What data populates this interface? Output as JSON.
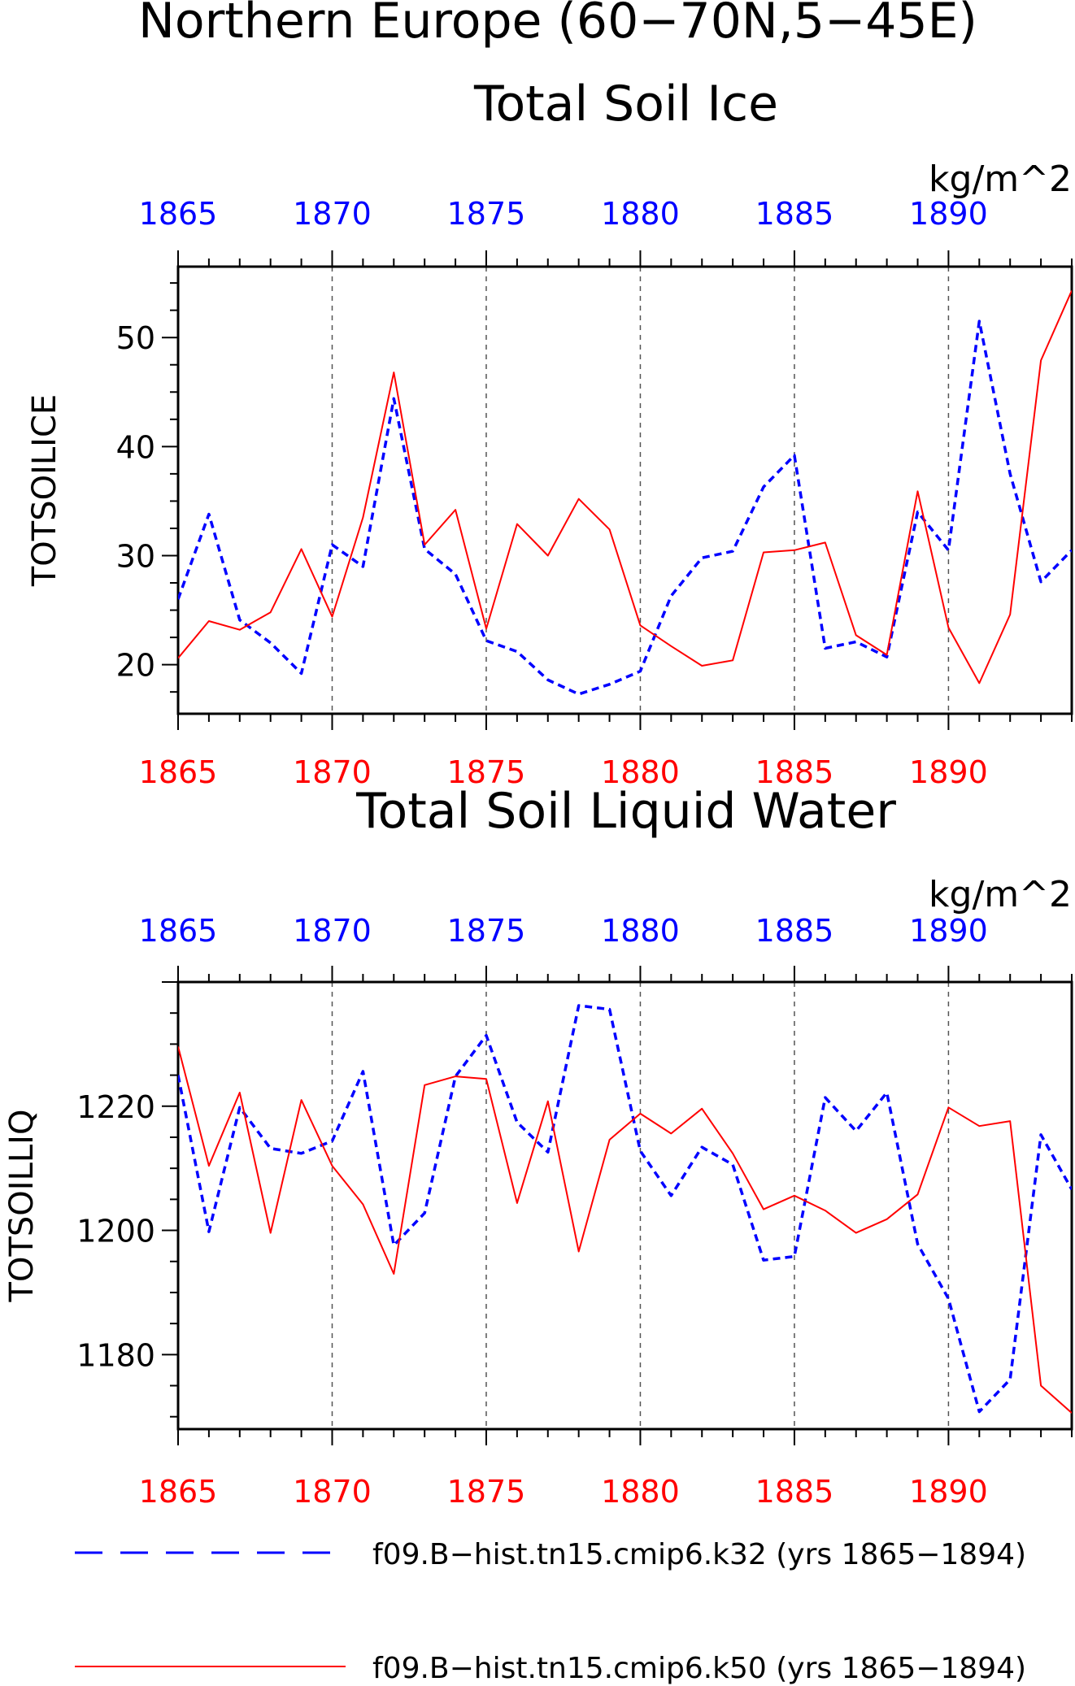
{
  "title": "Northern Europe (60−70N,5−45E)",
  "colors": {
    "k32": "#0000ff",
    "k50": "#ff0000",
    "axis": "#000000",
    "grid": "#555555"
  },
  "legend": {
    "placement": "bottom",
    "entries": [
      {
        "label": "f09.B−hist.tn15.cmip6.k32 (yrs 1865−1894)",
        "color": "#0000ff",
        "style": "dashed"
      },
      {
        "label": "f09.B−hist.tn15.cmip6.k50 (yrs 1865−1894)",
        "color": "#ff0000",
        "style": "solid"
      }
    ]
  },
  "chart_data": [
    {
      "type": "line",
      "title": "Total Soil Ice",
      "units": "kg/m^2",
      "ylabel": "TOTSOILICE",
      "xlim": [
        1865,
        1894
      ],
      "ylim": [
        15.5,
        56.5
      ],
      "yticks": [
        20,
        30,
        40,
        50
      ],
      "xticks": [
        1865,
        1870,
        1875,
        1880,
        1885,
        1890
      ],
      "grid": "vertical dashed at x ticks",
      "x": [
        1865,
        1866,
        1867,
        1868,
        1869,
        1870,
        1871,
        1872,
        1873,
        1874,
        1875,
        1876,
        1877,
        1878,
        1879,
        1880,
        1881,
        1882,
        1883,
        1884,
        1885,
        1886,
        1887,
        1888,
        1889,
        1890,
        1891,
        1892,
        1893,
        1894
      ],
      "series": [
        {
          "name": "f09.B−hist.tn15.cmip6.k32",
          "color": "#0000ff",
          "style": "dashed",
          "values": [
            26.0,
            33.8,
            24.1,
            22.0,
            19.2,
            31.0,
            29.0,
            44.4,
            30.6,
            28.3,
            22.2,
            21.2,
            18.6,
            17.3,
            18.2,
            19.4,
            26.3,
            29.8,
            30.4,
            36.3,
            39.2,
            21.5,
            22.1,
            20.7,
            34.0,
            30.5,
            51.5,
            37.5,
            27.6,
            30.5
          ]
        },
        {
          "name": "f09.B−hist.tn15.cmip6.k50",
          "color": "#ff0000",
          "style": "solid",
          "values": [
            20.6,
            24.0,
            23.2,
            24.8,
            30.6,
            24.4,
            33.5,
            46.8,
            31.0,
            34.2,
            23.3,
            32.9,
            30.0,
            35.2,
            32.4,
            23.6,
            21.7,
            19.9,
            20.4,
            30.3,
            30.5,
            31.2,
            22.7,
            20.9,
            35.9,
            23.4,
            18.3,
            24.6,
            47.9,
            54.3
          ]
        }
      ]
    },
    {
      "type": "line",
      "title": "Total Soil Liquid Water",
      "units": "kg/m^2",
      "ylabel": "TOTSOILLIQ",
      "xlim": [
        1865,
        1894
      ],
      "ylim": [
        1168,
        1240
      ],
      "yticks": [
        1180,
        1200,
        1220
      ],
      "xticks": [
        1865,
        1870,
        1875,
        1880,
        1885,
        1890
      ],
      "grid": "vertical dashed at x ticks",
      "x": [
        1865,
        1866,
        1867,
        1868,
        1869,
        1870,
        1871,
        1872,
        1873,
        1874,
        1875,
        1876,
        1877,
        1878,
        1879,
        1880,
        1881,
        1882,
        1883,
        1884,
        1885,
        1886,
        1887,
        1888,
        1889,
        1890,
        1891,
        1892,
        1893,
        1894
      ],
      "series": [
        {
          "name": "f09.B−hist.tn15.cmip6.k32",
          "color": "#0000ff",
          "style": "dashed",
          "values": [
            1225.0,
            1199.8,
            1219.8,
            1213.2,
            1212.4,
            1214.4,
            1225.6,
            1197.6,
            1202.8,
            1224.8,
            1231.4,
            1217.4,
            1212.6,
            1236.2,
            1235.6,
            1212.8,
            1205.6,
            1213.4,
            1210.6,
            1195.2,
            1195.8,
            1221.4,
            1216.0,
            1222.2,
            1197.8,
            1189.0,
            1170.8,
            1176.0,
            1215.4,
            1206.6
          ]
        },
        {
          "name": "f09.B−hist.tn15.cmip6.k50",
          "color": "#ff0000",
          "style": "solid",
          "values": [
            1229.6,
            1210.4,
            1222.2,
            1199.6,
            1221.0,
            1210.4,
            1204.2,
            1193.0,
            1223.4,
            1224.8,
            1224.4,
            1204.4,
            1220.8,
            1196.6,
            1214.6,
            1218.8,
            1215.6,
            1219.6,
            1212.4,
            1203.4,
            1205.6,
            1203.2,
            1199.6,
            1201.8,
            1205.8,
            1219.8,
            1216.8,
            1217.6,
            1175.0,
            1170.6
          ]
        }
      ]
    }
  ]
}
